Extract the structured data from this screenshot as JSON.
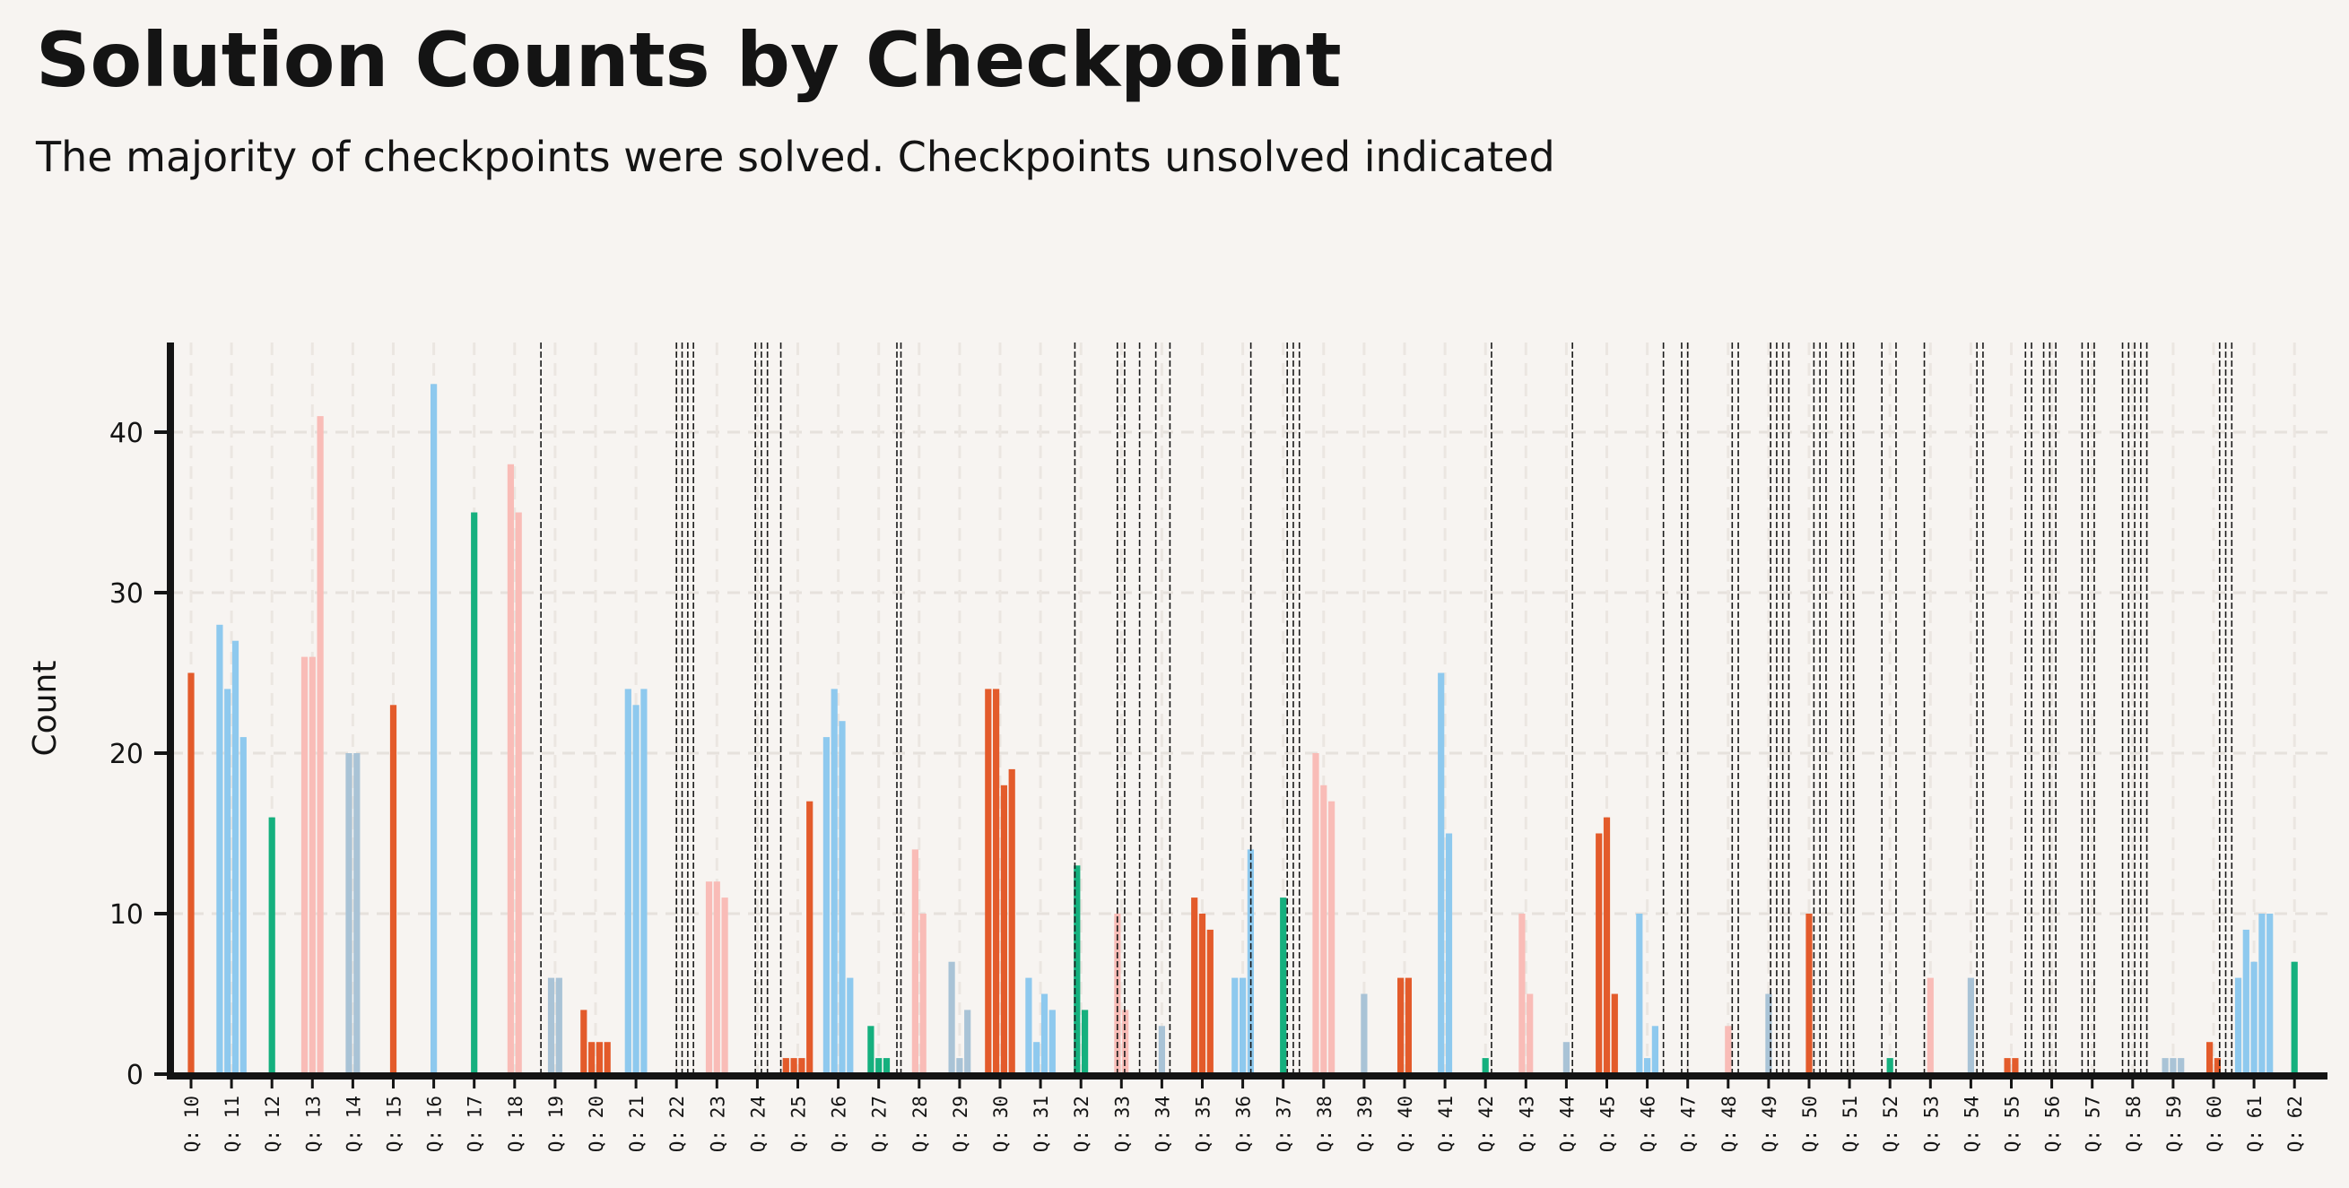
{
  "chart_data": {
    "type": "bar",
    "title": "Solution Counts by Checkpoint",
    "subtitle": "The majority of checkpoints were solved. Checkpoints unsolved indicated",
    "xlabel": "",
    "ylabel": "Count",
    "ylim": [
      0,
      45
    ],
    "yticks": [
      0,
      10,
      20,
      30,
      40
    ],
    "grid": true,
    "colors": {
      "orange": "#e35b2b",
      "blue": "#8ec9ee",
      "green": "#15b07e",
      "pink": "#f9bcb7",
      "steel": "#a9c3d6",
      "axis": "#141414",
      "background": "#f7f4f1"
    },
    "categories": [
      "Q: 10",
      "Q: 11",
      "Q: 12",
      "Q: 13",
      "Q: 14",
      "Q: 15",
      "Q: 16",
      "Q: 17",
      "Q: 18",
      "Q: 19",
      "Q: 20",
      "Q: 21",
      "Q: 22",
      "Q: 23",
      "Q: 24",
      "Q: 25",
      "Q: 26",
      "Q: 27",
      "Q: 28",
      "Q: 29",
      "Q: 30",
      "Q: 31",
      "Q: 32",
      "Q: 33",
      "Q: 34",
      "Q: 35",
      "Q: 36",
      "Q: 37",
      "Q: 38",
      "Q: 39",
      "Q: 40",
      "Q: 41",
      "Q: 42",
      "Q: 43",
      "Q: 44",
      "Q: 45",
      "Q: 46",
      "Q: 47",
      "Q: 48",
      "Q: 49",
      "Q: 50",
      "Q: 51",
      "Q: 52",
      "Q: 53",
      "Q: 54",
      "Q: 55",
      "Q: 56",
      "Q: 57",
      "Q: 58",
      "Q: 59",
      "Q: 60",
      "Q: 61",
      "Q: 62"
    ],
    "groups": [
      {
        "q": "Q: 10",
        "color": "orange",
        "values": [
          25
        ],
        "unsolved": []
      },
      {
        "q": "Q: 11",
        "color": "blue",
        "values": [
          28,
          24,
          27,
          21
        ],
        "unsolved": []
      },
      {
        "q": "Q: 12",
        "color": "green",
        "values": [
          16
        ],
        "unsolved": []
      },
      {
        "q": "Q: 13",
        "color": "pink",
        "values": [
          26,
          26,
          41
        ],
        "unsolved": []
      },
      {
        "q": "Q: 14",
        "color": "steel",
        "values": [
          20,
          20
        ],
        "unsolved": []
      },
      {
        "q": "Q: 15",
        "color": "orange",
        "values": [
          23
        ],
        "unsolved": []
      },
      {
        "q": "Q: 16",
        "color": "blue",
        "values": [
          43
        ],
        "unsolved": []
      },
      {
        "q": "Q: 17",
        "color": "green",
        "values": [
          35
        ],
        "unsolved": []
      },
      {
        "q": "Q: 18",
        "color": "pink",
        "values": [
          38,
          35
        ],
        "unsolved": [
          0.65
        ]
      },
      {
        "q": "Q: 19",
        "color": "steel",
        "values": [
          6,
          6
        ],
        "unsolved": []
      },
      {
        "q": "Q: 20",
        "color": "orange",
        "values": [
          4,
          2,
          2,
          2
        ],
        "unsolved": []
      },
      {
        "q": "Q: 21",
        "color": "blue",
        "values": [
          24,
          23,
          24
        ],
        "unsolved": []
      },
      {
        "q": "Q: 22",
        "color": "green",
        "values": [],
        "unsolved": [
          0.0,
          0.14,
          0.28,
          0.42
        ]
      },
      {
        "q": "Q: 23",
        "color": "pink",
        "values": [
          12,
          12,
          11
        ],
        "unsolved": []
      },
      {
        "q": "Q: 24",
        "color": "steel",
        "values": [],
        "unsolved": [
          -0.05,
          0.1,
          0.25
        ]
      },
      {
        "q": "Q: 25",
        "color": "orange",
        "values": [
          1,
          1,
          1,
          17
        ],
        "unsolved": [
          -0.42
        ]
      },
      {
        "q": "Q: 26",
        "color": "blue",
        "values": [
          21,
          24,
          22,
          6
        ],
        "unsolved": []
      },
      {
        "q": "Q: 27",
        "color": "green",
        "values": [
          3,
          1,
          1
        ],
        "unsolved": [
          0.45
        ]
      },
      {
        "q": "Q: 28",
        "color": "pink",
        "values": [
          14,
          10
        ],
        "unsolved": [
          -0.45
        ]
      },
      {
        "q": "Q: 29",
        "color": "steel",
        "values": [
          7,
          1,
          4
        ],
        "unsolved": []
      },
      {
        "q": "Q: 30",
        "color": "orange",
        "values": [
          24,
          24,
          18,
          19
        ],
        "unsolved": []
      },
      {
        "q": "Q: 31",
        "color": "blue",
        "values": [
          6,
          2,
          5,
          4
        ],
        "unsolved": []
      },
      {
        "q": "Q: 32",
        "color": "green",
        "values": [
          13,
          4
        ],
        "unsolved": [
          -0.15
        ]
      },
      {
        "q": "Q: 33",
        "color": "pink",
        "values": [
          10,
          4
        ],
        "unsolved": [
          -0.1,
          0.08,
          0.45
        ]
      },
      {
        "q": "Q: 34",
        "color": "steel",
        "values": [
          3
        ],
        "unsolved": [
          -0.15,
          0.2
        ]
      },
      {
        "q": "Q: 35",
        "color": "orange",
        "values": [
          11,
          10,
          9
        ],
        "unsolved": []
      },
      {
        "q": "Q: 36",
        "color": "blue",
        "values": [
          6,
          6,
          14
        ],
        "unsolved": [
          0.2
        ]
      },
      {
        "q": "Q: 37",
        "color": "green",
        "values": [
          11
        ],
        "unsolved": [
          0.1,
          0.25,
          0.4
        ]
      },
      {
        "q": "Q: 38",
        "color": "pink",
        "values": [
          20,
          18,
          17
        ],
        "unsolved": []
      },
      {
        "q": "Q: 39",
        "color": "steel",
        "values": [
          5
        ],
        "unsolved": []
      },
      {
        "q": "Q: 40",
        "color": "orange",
        "values": [
          6,
          6
        ],
        "unsolved": []
      },
      {
        "q": "Q: 41",
        "color": "blue",
        "values": [
          25,
          15
        ],
        "unsolved": []
      },
      {
        "q": "Q: 42",
        "color": "green",
        "values": [
          1
        ],
        "unsolved": [
          0.15
        ]
      },
      {
        "q": "Q: 43",
        "color": "pink",
        "values": [
          10,
          5
        ],
        "unsolved": []
      },
      {
        "q": "Q: 44",
        "color": "steel",
        "values": [
          2
        ],
        "unsolved": [
          0.15
        ]
      },
      {
        "q": "Q: 45",
        "color": "orange",
        "values": [
          15,
          16,
          5
        ],
        "unsolved": []
      },
      {
        "q": "Q: 46",
        "color": "blue",
        "values": [
          10,
          1,
          3
        ],
        "unsolved": [
          0.4
        ]
      },
      {
        "q": "Q: 47",
        "color": "green",
        "values": [],
        "unsolved": [
          -0.15,
          0.0
        ]
      },
      {
        "q": "Q: 48",
        "color": "pink",
        "values": [
          3
        ],
        "unsolved": [
          0.1,
          0.25
        ]
      },
      {
        "q": "Q: 49",
        "color": "steel",
        "values": [
          5
        ],
        "unsolved": [
          0.05,
          0.2,
          0.35,
          0.5
        ]
      },
      {
        "q": "Q: 50",
        "color": "orange",
        "values": [
          10
        ],
        "unsolved": [
          0.12,
          0.27,
          0.42
        ]
      },
      {
        "q": "Q: 51",
        "color": "blue",
        "values": [],
        "unsolved": [
          -0.2,
          -0.05,
          0.1
        ]
      },
      {
        "q": "Q: 52",
        "color": "green",
        "values": [
          1
        ],
        "unsolved": [
          -0.2,
          0.15
        ]
      },
      {
        "q": "Q: 53",
        "color": "pink",
        "values": [
          6
        ],
        "unsolved": [
          -0.15
        ]
      },
      {
        "q": "Q: 54",
        "color": "steel",
        "values": [
          6
        ],
        "unsolved": [
          0.15,
          0.3
        ]
      },
      {
        "q": "Q: 55",
        "color": "orange",
        "values": [
          1,
          1
        ],
        "unsolved": [
          0.35,
          0.5
        ]
      },
      {
        "q": "Q: 56",
        "color": "blue",
        "values": [],
        "unsolved": [
          -0.2,
          -0.05,
          0.1
        ]
      },
      {
        "q": "Q: 57",
        "color": "green",
        "values": [],
        "unsolved": [
          -0.25,
          -0.1,
          0.05
        ]
      },
      {
        "q": "Q: 58",
        "color": "pink",
        "values": [],
        "unsolved": [
          -0.25,
          -0.1,
          0.05,
          0.2,
          0.35
        ]
      },
      {
        "q": "Q: 59",
        "color": "steel",
        "values": [
          1,
          1,
          1
        ],
        "unsolved": []
      },
      {
        "q": "Q: 60",
        "color": "orange",
        "values": [
          2,
          1
        ],
        "unsolved": [
          0.15,
          0.3,
          0.45
        ]
      },
      {
        "q": "Q: 61",
        "color": "blue",
        "values": [
          6,
          9,
          7,
          10,
          10
        ],
        "unsolved": []
      },
      {
        "q": "Q: 62",
        "color": "green",
        "values": [
          7
        ],
        "unsolved": []
      }
    ]
  }
}
